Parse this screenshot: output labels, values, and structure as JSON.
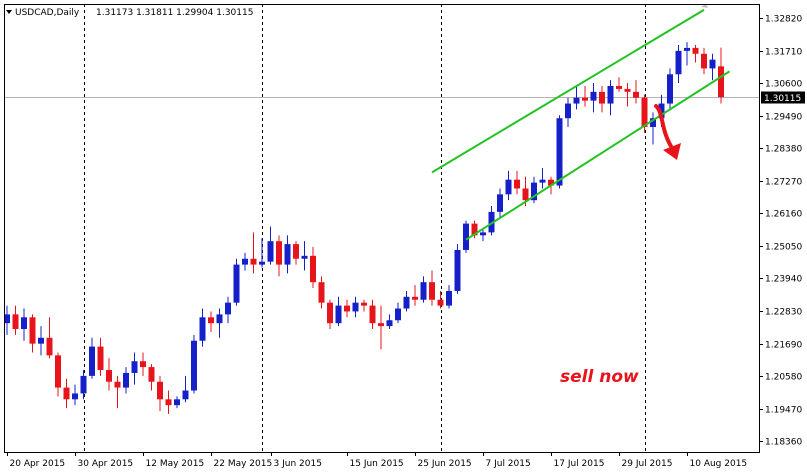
{
  "chart_data": {
    "type": "candlestick",
    "symbol_label": "USDCAD,Daily",
    "ohlc_header": [
      "1.31173",
      "1.31811",
      "1.29904",
      "1.30115"
    ],
    "current_price": 1.30115,
    "current_price_label": "1.30115",
    "ylim": [
      1.18,
      1.333
    ],
    "yticks": [
      {
        "v": 1.3282,
        "label": "1.32820"
      },
      {
        "v": 1.3171,
        "label": "1.31710"
      },
      {
        "v": 1.306,
        "label": "1.30600"
      },
      {
        "v": 1.2949,
        "label": "1.29490"
      },
      {
        "v": 1.2838,
        "label": "1.28380"
      },
      {
        "v": 1.2727,
        "label": "1.27270"
      },
      {
        "v": 1.2616,
        "label": "1.26160"
      },
      {
        "v": 1.2505,
        "label": "1.25050"
      },
      {
        "v": 1.2394,
        "label": "1.23940"
      },
      {
        "v": 1.2283,
        "label": "1.22830"
      },
      {
        "v": 1.2169,
        "label": "1.21690"
      },
      {
        "v": 1.2058,
        "label": "1.20580"
      },
      {
        "v": 1.1947,
        "label": "1.19470"
      },
      {
        "v": 1.1836,
        "label": "1.18360"
      }
    ],
    "xticks": [
      {
        "i": 0,
        "label": "20 Apr 2015"
      },
      {
        "i": 8,
        "label": "30 Apr 2015"
      },
      {
        "i": 16,
        "label": "12 May 2015"
      },
      {
        "i": 24,
        "label": "22 May 2015"
      },
      {
        "i": 31,
        "label": "3 Jun 2015"
      },
      {
        "i": 40,
        "label": "15 Jun 2015"
      },
      {
        "i": 48,
        "label": "25 Jun 2015"
      },
      {
        "i": 56,
        "label": "7 Jul 2015"
      },
      {
        "i": 64,
        "label": "17 Jul 2015"
      },
      {
        "i": 72,
        "label": "29 Jul 2015"
      },
      {
        "i": 80,
        "label": "10 Aug 2015"
      }
    ],
    "vlines_at": [
      9,
      30,
      51,
      75
    ],
    "candles": [
      [
        1.224,
        1.23,
        1.22,
        1.227
      ],
      [
        1.227,
        1.23,
        1.22,
        1.222
      ],
      [
        1.222,
        1.229,
        1.218,
        1.226
      ],
      [
        1.226,
        1.227,
        1.214,
        1.217
      ],
      [
        1.217,
        1.223,
        1.213,
        1.219
      ],
      [
        1.219,
        1.226,
        1.212,
        1.213
      ],
      [
        1.213,
        1.214,
        1.199,
        1.202
      ],
      [
        1.202,
        1.205,
        1.195,
        1.198
      ],
      [
        1.198,
        1.203,
        1.196,
        1.2
      ],
      [
        1.2,
        1.208,
        1.198,
        1.206
      ],
      [
        1.206,
        1.219,
        1.205,
        1.216
      ],
      [
        1.216,
        1.219,
        1.206,
        1.208
      ],
      [
        1.208,
        1.212,
        1.201,
        1.204
      ],
      [
        1.204,
        1.206,
        1.195,
        1.202
      ],
      [
        1.202,
        1.209,
        1.2,
        1.207
      ],
      [
        1.207,
        1.214,
        1.203,
        1.211
      ],
      [
        1.211,
        1.214,
        1.206,
        1.209
      ],
      [
        1.209,
        1.21,
        1.201,
        1.204
      ],
      [
        1.204,
        1.206,
        1.194,
        1.198
      ],
      [
        1.198,
        1.201,
        1.193,
        1.196
      ],
      [
        1.196,
        1.199,
        1.195,
        1.198
      ],
      [
        1.198,
        1.206,
        1.197,
        1.201
      ],
      [
        1.201,
        1.22,
        1.2,
        1.218
      ],
      [
        1.218,
        1.229,
        1.216,
        1.226
      ],
      [
        1.226,
        1.228,
        1.221,
        1.224
      ],
      [
        1.224,
        1.229,
        1.219,
        1.227
      ],
      [
        1.227,
        1.233,
        1.224,
        1.231
      ],
      [
        1.231,
        1.246,
        1.23,
        1.244
      ],
      [
        1.244,
        1.248,
        1.242,
        1.246
      ],
      [
        1.246,
        1.255,
        1.241,
        1.244
      ],
      [
        1.244,
        1.253,
        1.243,
        1.245
      ],
      [
        1.245,
        1.257,
        1.244,
        1.252
      ],
      [
        1.252,
        1.254,
        1.24,
        1.244
      ],
      [
        1.244,
        1.254,
        1.241,
        1.251
      ],
      [
        1.251,
        1.252,
        1.244,
        1.246
      ],
      [
        1.246,
        1.252,
        1.242,
        1.247
      ],
      [
        1.247,
        1.25,
        1.236,
        1.238
      ],
      [
        1.238,
        1.24,
        1.229,
        1.231
      ],
      [
        1.231,
        1.232,
        1.222,
        1.224
      ],
      [
        1.224,
        1.233,
        1.223,
        1.23
      ],
      [
        1.23,
        1.232,
        1.226,
        1.228
      ],
      [
        1.228,
        1.233,
        1.226,
        1.231
      ],
      [
        1.231,
        1.232,
        1.228,
        1.23
      ],
      [
        1.23,
        1.232,
        1.222,
        1.224
      ],
      [
        1.224,
        1.23,
        1.215,
        1.223
      ],
      [
        1.223,
        1.227,
        1.222,
        1.225
      ],
      [
        1.225,
        1.231,
        1.224,
        1.229
      ],
      [
        1.229,
        1.235,
        1.228,
        1.233
      ],
      [
        1.233,
        1.237,
        1.23,
        1.232
      ],
      [
        1.232,
        1.24,
        1.231,
        1.238
      ],
      [
        1.238,
        1.242,
        1.23,
        1.232
      ],
      [
        1.232,
        1.235,
        1.229,
        1.23
      ],
      [
        1.23,
        1.237,
        1.229,
        1.235
      ],
      [
        1.235,
        1.251,
        1.234,
        1.249
      ],
      [
        1.249,
        1.259,
        1.248,
        1.258
      ],
      [
        1.258,
        1.259,
        1.253,
        1.254
      ],
      [
        1.254,
        1.256,
        1.252,
        1.255
      ],
      [
        1.255,
        1.264,
        1.254,
        1.262
      ],
      [
        1.262,
        1.27,
        1.26,
        1.268
      ],
      [
        1.268,
        1.276,
        1.266,
        1.273
      ],
      [
        1.273,
        1.276,
        1.268,
        1.27
      ],
      [
        1.27,
        1.274,
        1.264,
        1.266
      ],
      [
        1.266,
        1.274,
        1.265,
        1.272
      ],
      [
        1.272,
        1.277,
        1.27,
        1.273
      ],
      [
        1.273,
        1.274,
        1.268,
        1.271
      ],
      [
        1.271,
        1.295,
        1.27,
        1.294
      ],
      [
        1.294,
        1.301,
        1.291,
        1.299
      ],
      [
        1.299,
        1.305,
        1.297,
        1.301
      ],
      [
        1.301,
        1.305,
        1.298,
        1.3
      ],
      [
        1.3,
        1.306,
        1.296,
        1.303
      ],
      [
        1.303,
        1.305,
        1.296,
        1.299
      ],
      [
        1.299,
        1.307,
        1.295,
        1.305
      ],
      [
        1.305,
        1.308,
        1.303,
        1.304
      ],
      [
        1.304,
        1.306,
        1.298,
        1.303
      ],
      [
        1.303,
        1.307,
        1.299,
        1.301
      ],
      [
        1.301,
        1.302,
        1.289,
        1.291
      ],
      [
        1.291,
        1.296,
        1.285,
        1.294
      ],
      [
        1.294,
        1.302,
        1.291,
        1.299
      ],
      [
        1.299,
        1.311,
        1.297,
        1.309
      ],
      [
        1.309,
        1.319,
        1.306,
        1.317
      ],
      [
        1.317,
        1.32,
        1.312,
        1.318
      ],
      [
        1.318,
        1.319,
        1.313,
        1.316
      ],
      [
        1.316,
        1.318,
        1.309,
        1.311
      ],
      [
        1.311,
        1.316,
        1.307,
        1.314
      ],
      [
        1.3117,
        1.3181,
        1.299,
        1.3012
      ]
    ],
    "channel_upper": [
      [
        1.2755,
        50
      ],
      [
        1.331,
        82
      ]
    ],
    "channel_lower": [
      [
        1.2525,
        54
      ],
      [
        1.31,
        85
      ]
    ],
    "annotation_text": "sell now",
    "colors": {
      "bull": "#1620c8",
      "bear": "#e8141c",
      "channel": "#22c322",
      "arrow": "#e8141c",
      "price_line": "#b4b4b4",
      "price_box": "#000000",
      "price_text": "#ffffff",
      "axis": "#000000"
    }
  }
}
